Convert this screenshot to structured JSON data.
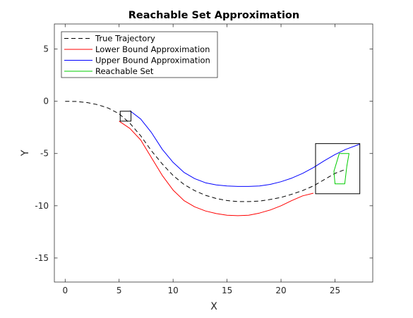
{
  "chart_data": {
    "type": "line",
    "title": "Reachable Set Approximation",
    "xlabel": "X",
    "ylabel": "Y",
    "xlim": [
      -1,
      28.5
    ],
    "ylim": [
      -17.3,
      7.4
    ],
    "xticks": [
      0,
      5,
      10,
      15,
      20,
      25
    ],
    "yticks": [
      5,
      0,
      -5,
      -10,
      -15
    ],
    "grid": false,
    "legend_position": "top-left",
    "series": [
      {
        "name": "True Trajectory",
        "color": "#000000",
        "dash": "dashed",
        "x": [
          0,
          1,
          2,
          3,
          4,
          5,
          6,
          7,
          8,
          9,
          10,
          11,
          12,
          13,
          14,
          15,
          16,
          17,
          18,
          19,
          20,
          21,
          22,
          23,
          24,
          25,
          26
        ],
        "y": [
          0,
          -0.02,
          -0.12,
          -0.32,
          -0.65,
          -1.2,
          -2.1,
          -3.3,
          -4.75,
          -6.0,
          -7.1,
          -7.95,
          -8.55,
          -9.0,
          -9.3,
          -9.5,
          -9.6,
          -9.6,
          -9.55,
          -9.4,
          -9.2,
          -8.9,
          -8.55,
          -8.1,
          -7.5,
          -6.9,
          -6.5
        ]
      },
      {
        "name": "Lower Bound Approximation",
        "color": "#ff0000",
        "dash": "solid",
        "x": [
          5,
          6,
          7,
          8,
          9,
          10,
          11,
          12,
          13,
          14,
          15,
          16,
          17,
          18,
          19,
          20,
          21,
          22,
          23
        ],
        "y": [
          -1.9,
          -2.6,
          -3.7,
          -5.4,
          -7.1,
          -8.5,
          -9.5,
          -10.1,
          -10.5,
          -10.75,
          -10.9,
          -10.95,
          -10.9,
          -10.7,
          -10.4,
          -10.0,
          -9.5,
          -9.05,
          -8.8
        ]
      },
      {
        "name": "Upper Bound Approximation",
        "color": "#0000ff",
        "dash": "solid",
        "x": [
          6,
          7,
          8,
          9,
          10,
          11,
          12,
          13,
          14,
          15,
          16,
          17,
          18,
          19,
          20,
          21,
          22,
          23,
          24,
          25,
          26,
          27.3
        ],
        "y": [
          -0.9,
          -1.7,
          -3.0,
          -4.6,
          -5.85,
          -6.8,
          -7.4,
          -7.8,
          -8.0,
          -8.1,
          -8.15,
          -8.15,
          -8.1,
          -7.95,
          -7.7,
          -7.35,
          -6.9,
          -6.35,
          -5.7,
          -5.1,
          -4.6,
          -4.1
        ]
      },
      {
        "name": "Reachable Set",
        "color": "#00cc00",
        "dash": "solid",
        "closed": true,
        "x": [
          25.4,
          26.3,
          26.1,
          25.9,
          25.5,
          25.0,
          24.9,
          25.4
        ],
        "y": [
          -5.0,
          -5.0,
          -6.2,
          -7.9,
          -7.9,
          -7.9,
          -6.7,
          -5.0
        ]
      }
    ],
    "boxes": [
      {
        "x": [
          5.1,
          6.1
        ],
        "y": [
          -0.95,
          -1.9
        ]
      },
      {
        "x": [
          23.2,
          27.3
        ],
        "y": [
          -4.05,
          -8.85
        ]
      }
    ]
  }
}
